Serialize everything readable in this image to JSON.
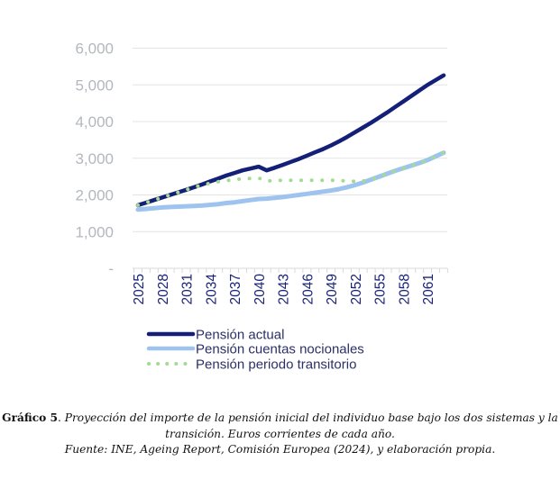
{
  "chart_data": {
    "type": "line",
    "title": "",
    "xlabel": "",
    "ylabel": "",
    "ylim": [
      0,
      6000
    ],
    "yticks": [
      "-",
      "1,000",
      "2,000",
      "3,000",
      "4,000",
      "5,000",
      "6,000"
    ],
    "xticks": [
      "2025",
      "2028",
      "2031",
      "2034",
      "2037",
      "2040",
      "2043",
      "2046",
      "2049",
      "2052",
      "2055",
      "2058",
      "2061"
    ],
    "grid": true,
    "legend_position": "bottom",
    "x": [
      2025,
      2026,
      2027,
      2028,
      2029,
      2030,
      2031,
      2032,
      2033,
      2034,
      2035,
      2036,
      2037,
      2038,
      2039,
      2040,
      2041,
      2042,
      2043,
      2044,
      2045,
      2046,
      2047,
      2048,
      2049,
      2050,
      2051,
      2052,
      2053,
      2054,
      2055,
      2056,
      2057,
      2058,
      2059,
      2060,
      2061,
      2062,
      2063
    ],
    "series": [
      {
        "name": "Pensión actual",
        "color": "#141f78",
        "style": "solid",
        "values": [
          1720,
          1790,
          1860,
          1930,
          2000,
          2070,
          2140,
          2210,
          2290,
          2370,
          2450,
          2530,
          2600,
          2670,
          2720,
          2770,
          2670,
          2740,
          2820,
          2900,
          2980,
          3070,
          3160,
          3250,
          3350,
          3460,
          3580,
          3710,
          3840,
          3970,
          4110,
          4250,
          4400,
          4550,
          4700,
          4850,
          5000,
          5130,
          5260
        ]
      },
      {
        "name": "Pensión cuentas nocionales",
        "color": "#9dc3ee",
        "style": "solid",
        "values": [
          1600,
          1620,
          1640,
          1660,
          1670,
          1680,
          1690,
          1700,
          1710,
          1730,
          1750,
          1780,
          1800,
          1830,
          1860,
          1890,
          1900,
          1920,
          1940,
          1970,
          2000,
          2030,
          2060,
          2090,
          2120,
          2160,
          2210,
          2270,
          2340,
          2420,
          2500,
          2580,
          2660,
          2730,
          2800,
          2870,
          2950,
          3050,
          3150
        ]
      },
      {
        "name": "Pensión periodo transitorio",
        "color": "#a4db93",
        "style": "dotted",
        "values": [
          1720,
          1790,
          1860,
          1930,
          2000,
          2070,
          2140,
          2210,
          2270,
          2320,
          2360,
          2390,
          2420,
          2440,
          2450,
          2460,
          2380,
          2390,
          2400,
          2400,
          2400,
          2400,
          2400,
          2400,
          2400,
          2390,
          2380,
          2370,
          2380,
          2420,
          2500,
          2580,
          2660,
          2730,
          2800,
          2870,
          2950,
          3050,
          3150
        ]
      }
    ]
  },
  "caption": {
    "label": "Gráfico 5",
    "sep": ". ",
    "line1": "Proyección del importe de la pensión inicial del individuo base bajo los dos sistemas y la",
    "line2": "transición. Euros corrientes de cada año.",
    "source": "Fuente: INE, Ageing Report, Comisión Europea (2024), y elaboración propia."
  }
}
